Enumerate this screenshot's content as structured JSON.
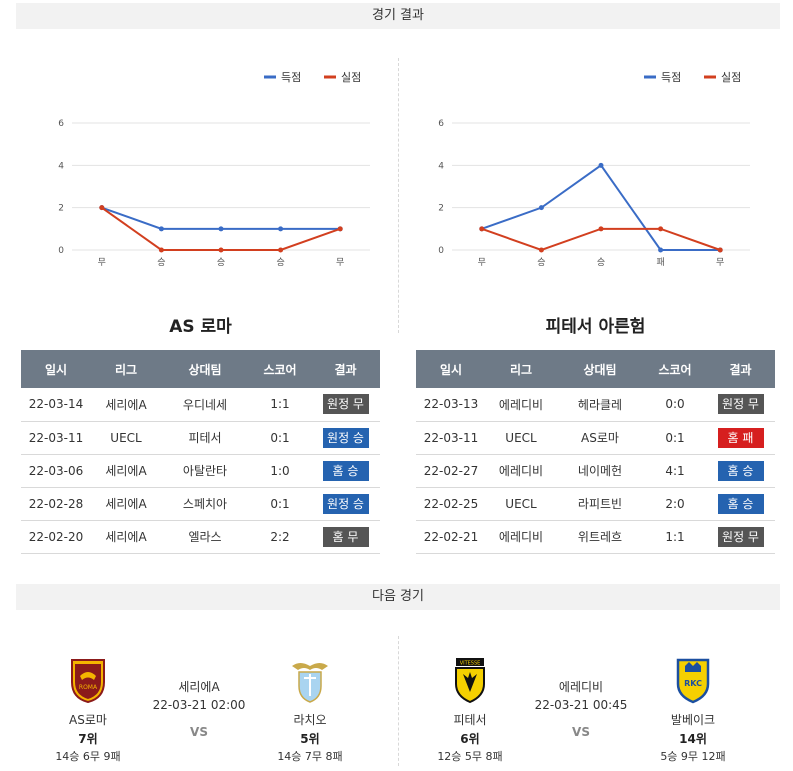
{
  "sections": {
    "results_title": "경기 결과",
    "next_title": "다음 경기"
  },
  "legend": {
    "scored": "득점",
    "conceded": "실점",
    "scored_color": "#3a6cc6",
    "conceded_color": "#d23f1f"
  },
  "chart_data": [
    {
      "type": "line",
      "categories": [
        "무",
        "승",
        "승",
        "승",
        "무"
      ],
      "series": [
        {
          "name": "득점",
          "values": [
            2,
            1,
            1,
            1,
            1
          ]
        },
        {
          "name": "실점",
          "values": [
            2,
            0,
            0,
            0,
            1
          ]
        }
      ],
      "yticks": [
        0,
        2,
        4,
        6
      ],
      "ylim": [
        0,
        6
      ],
      "grid": true,
      "legend_position": "top-right"
    },
    {
      "type": "line",
      "categories": [
        "무",
        "승",
        "승",
        "패",
        "무"
      ],
      "series": [
        {
          "name": "득점",
          "values": [
            1,
            2,
            4,
            0,
            0
          ]
        },
        {
          "name": "실점",
          "values": [
            1,
            0,
            1,
            1,
            0
          ]
        }
      ],
      "yticks": [
        0,
        2,
        4,
        6
      ],
      "ylim": [
        0,
        6
      ],
      "grid": true,
      "legend_position": "top-right"
    }
  ],
  "tables": {
    "headers": [
      "일시",
      "리그",
      "상대팀",
      "스코어",
      "결과"
    ],
    "left": {
      "team": "AS 로마",
      "rows": [
        {
          "date": "22-03-14",
          "league": "세리에A",
          "opponent": "우디네세",
          "score": "1:1",
          "result": "원정 무",
          "color": "gray"
        },
        {
          "date": "22-03-11",
          "league": "UECL",
          "opponent": "피테서",
          "score": "0:1",
          "result": "원정 승",
          "color": "blue"
        },
        {
          "date": "22-03-06",
          "league": "세리에A",
          "opponent": "아탈란타",
          "score": "1:0",
          "result": "홈 승",
          "color": "blue"
        },
        {
          "date": "22-02-28",
          "league": "세리에A",
          "opponent": "스페치아",
          "score": "0:1",
          "result": "원정 승",
          "color": "blue"
        },
        {
          "date": "22-02-20",
          "league": "세리에A",
          "opponent": "엘라스",
          "score": "2:2",
          "result": "홈 무",
          "color": "gray"
        }
      ]
    },
    "right": {
      "team": "피테서 아른험",
      "rows": [
        {
          "date": "22-03-13",
          "league": "에레디비",
          "opponent": "헤라클레",
          "score": "0:0",
          "result": "원정 무",
          "color": "gray"
        },
        {
          "date": "22-03-11",
          "league": "UECL",
          "opponent": "AS로마",
          "score": "0:1",
          "result": "홈 패",
          "color": "red"
        },
        {
          "date": "22-02-27",
          "league": "에레디비",
          "opponent": "네이메헌",
          "score": "4:1",
          "result": "홈 승",
          "color": "blue"
        },
        {
          "date": "22-02-25",
          "league": "UECL",
          "opponent": "라피트빈",
          "score": "2:0",
          "result": "홈 승",
          "color": "blue"
        },
        {
          "date": "22-02-21",
          "league": "에레디비",
          "opponent": "위트레흐",
          "score": "1:1",
          "result": "원정 무",
          "color": "gray"
        }
      ]
    }
  },
  "next": {
    "left": {
      "home": {
        "name": "AS로마",
        "rank": "7위",
        "record": "14승 6무 9패",
        "logo_text": "ROMA"
      },
      "league": "세리에A",
      "datetime": "22-03-21 02:00",
      "vs": "VS",
      "away": {
        "name": "라치오",
        "rank": "5위",
        "record": "14승 7무 8패",
        "logo_text": ""
      }
    },
    "right": {
      "home": {
        "name": "피테서",
        "rank": "6위",
        "record": "12승 5무 8패",
        "logo_text": "VITESSE"
      },
      "league": "에레디비",
      "datetime": "22-03-21 00:45",
      "vs": "VS",
      "away": {
        "name": "발베이크",
        "rank": "14위",
        "record": "5승 9무 12패",
        "logo_text": "RKC"
      }
    }
  }
}
